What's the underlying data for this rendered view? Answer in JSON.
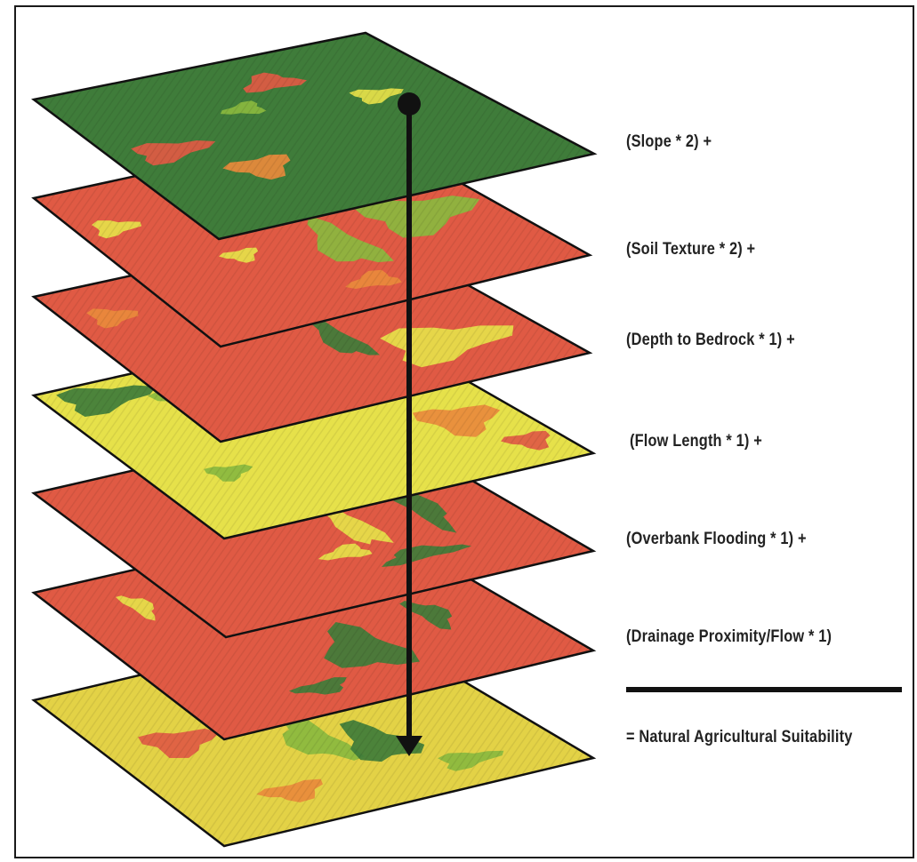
{
  "layers": [
    {
      "label": "(Slope * 2) +",
      "base": "#3f7c3a"
    },
    {
      "label": "(Soil Texture * 2) +",
      "base": "#e05a44"
    },
    {
      "label": "(Depth to Bedrock * 1) +",
      "base": "#e05a44"
    },
    {
      "label": "(Flow Length * 1) +",
      "base": "#e6e14a"
    },
    {
      "label": "(Overbank Flooding * 1) +",
      "base": "#e05a44"
    },
    {
      "label": "(Drainage Proximity/Flow * 1)",
      "base": "#e05a44"
    },
    {
      "label": "= Natural Agricultural Suitability",
      "base": "#e3d246"
    }
  ],
  "colors": {
    "dark_green": "#3f7c3a",
    "light_green": "#8ab83f",
    "red": "#e05a44",
    "orange": "#e98a3c",
    "yellow": "#e6e14a",
    "arrow": "#111111"
  }
}
